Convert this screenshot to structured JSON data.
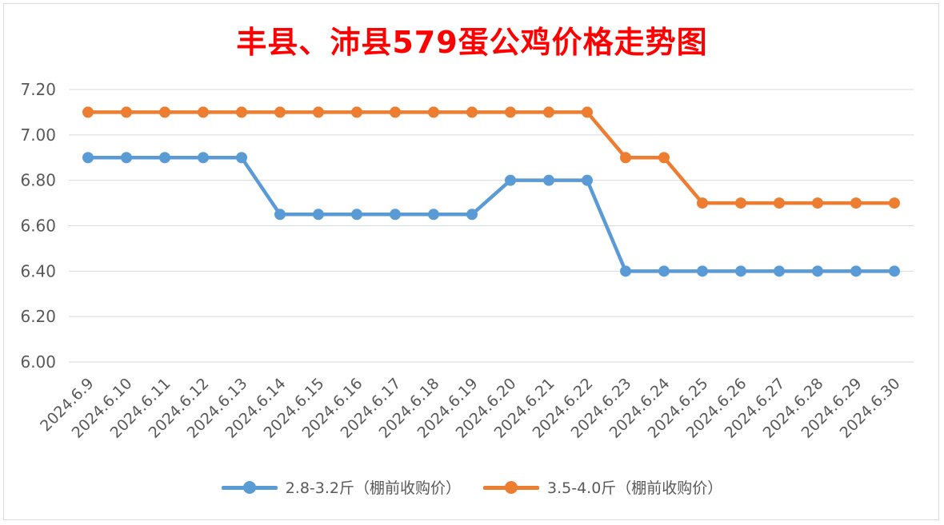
{
  "chart_data": {
    "type": "line",
    "title": "丰县、沛县579蛋公鸡价格走势图",
    "categories": [
      "2024.6.9",
      "2024.6.10",
      "2024.6.11",
      "2024.6.12",
      "2024.6.13",
      "2024.6.14",
      "2024.6.15",
      "2024.6.16",
      "2024.6.17",
      "2024.6.18",
      "2024.6.19",
      "2024.6.20",
      "2024.6.21",
      "2024.6.22",
      "2024.6.23",
      "2024.6.24",
      "2024.6.25",
      "2024.6.26",
      "2024.6.27",
      "2024.6.28",
      "2024.6.29",
      "2024.6.30"
    ],
    "series": [
      {
        "name": "2.8-3.2斤（棚前收购价）",
        "color": "#5b9bd5",
        "values": [
          6.9,
          6.9,
          6.9,
          6.9,
          6.9,
          6.65,
          6.65,
          6.65,
          6.65,
          6.65,
          6.65,
          6.8,
          6.8,
          6.8,
          6.4,
          6.4,
          6.4,
          6.4,
          6.4,
          6.4,
          6.4,
          6.4
        ]
      },
      {
        "name": "3.5-4.0斤（棚前收购价）",
        "color": "#ed7d31",
        "values": [
          7.1,
          7.1,
          7.1,
          7.1,
          7.1,
          7.1,
          7.1,
          7.1,
          7.1,
          7.1,
          7.1,
          7.1,
          7.1,
          7.1,
          6.9,
          6.9,
          6.7,
          6.7,
          6.7,
          6.7,
          6.7,
          6.7
        ]
      }
    ],
    "ylim": [
      6.0,
      7.2
    ],
    "yticks": [
      "6.00",
      "6.20",
      "6.40",
      "6.60",
      "6.80",
      "7.00",
      "7.20"
    ],
    "grid": true,
    "legend_position": "bottom",
    "title_color": "#ff0000"
  }
}
